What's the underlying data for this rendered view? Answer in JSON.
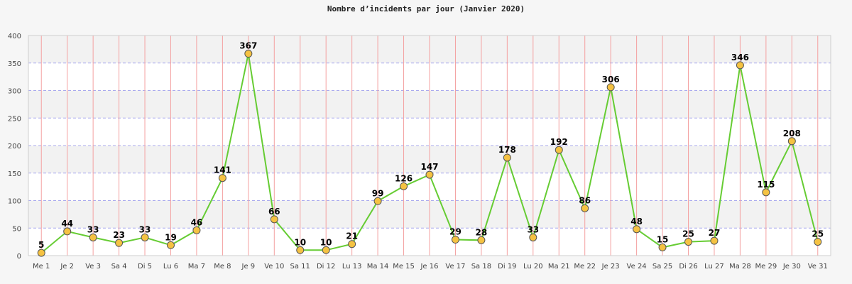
{
  "chart_data": {
    "type": "line",
    "title": "Nombre d’incidents par jour (Janvier 2020)",
    "categories": [
      "Me 1",
      "Je 2",
      "Ve 3",
      "Sa 4",
      "Di 5",
      "Lu 6",
      "Ma 7",
      "Me 8",
      "Je 9",
      "Ve 10",
      "Sa 11",
      "Di 12",
      "Lu 13",
      "Ma 14",
      "Me 15",
      "Je 16",
      "Ve 17",
      "Sa 18",
      "Di 19",
      "Lu 20",
      "Ma 21",
      "Me 22",
      "Je 23",
      "Ve 24",
      "Sa 25",
      "Di 26",
      "Lu 27",
      "Ma 28",
      "Me 29",
      "Je 30",
      "Ve 31"
    ],
    "values": [
      5,
      44,
      33,
      23,
      33,
      19,
      46,
      141,
      367,
      66,
      10,
      10,
      21,
      99,
      126,
      147,
      29,
      28,
      178,
      33,
      192,
      86,
      306,
      48,
      15,
      25,
      27,
      346,
      115,
      208,
      25
    ],
    "ylim": [
      0,
      400
    ],
    "yticks": [
      0,
      50,
      100,
      150,
      200,
      250,
      300,
      350,
      400
    ],
    "grid": true,
    "colors": {
      "line": "#66cc33",
      "marker_fill": "#f5c242",
      "marker_stroke": "#555555",
      "band_alt": "#f2f2f2",
      "hgrid": "#aaaaee",
      "vgrid": "#f4a0a0"
    }
  }
}
